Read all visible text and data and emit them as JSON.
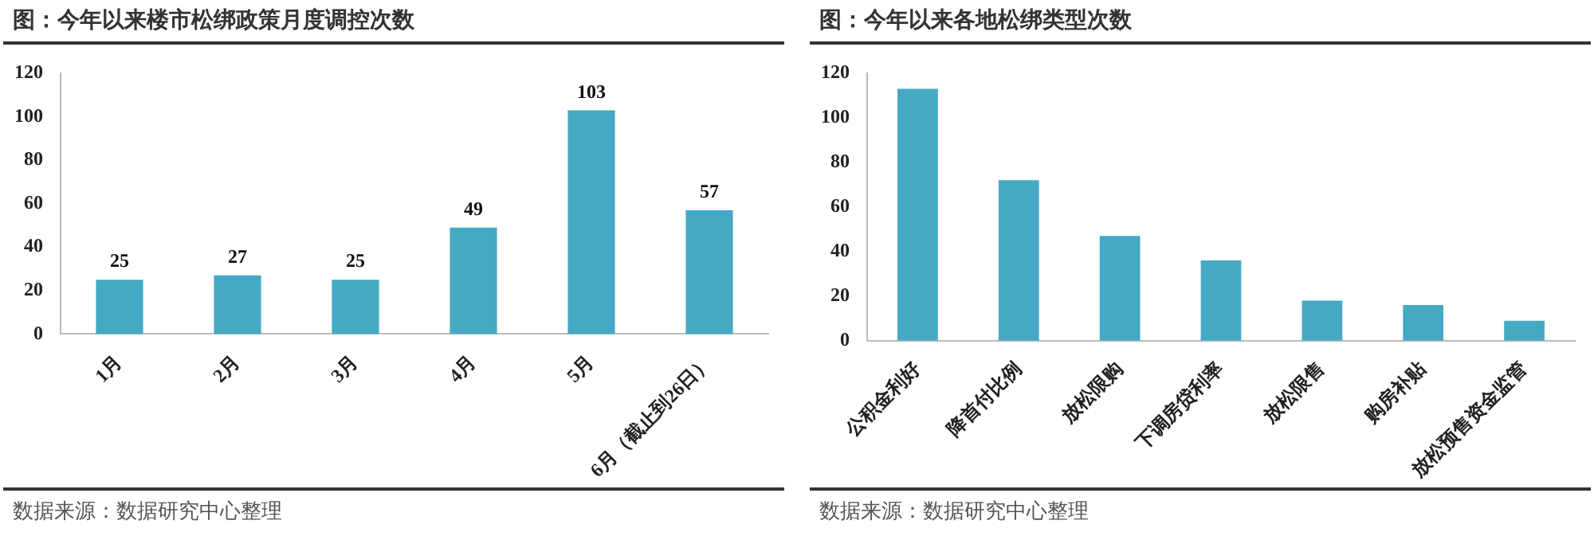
{
  "chart_data": [
    {
      "type": "bar",
      "title": "图：今年以来楼市松绑政策月度调控次数",
      "categories": [
        "1月",
        "2月",
        "3月",
        "4月",
        "5月",
        "6月（截止到26日）"
      ],
      "values": [
        25,
        27,
        25,
        49,
        103,
        57
      ],
      "color": "#45a9c4",
      "ylim": [
        0,
        120
      ],
      "yticks": [
        0,
        20,
        40,
        60,
        80,
        100,
        120
      ],
      "grid": false,
      "legend": false,
      "data_labels": true,
      "annotations": [
        "数据来源：数据研究中心整理"
      ]
    },
    {
      "type": "bar",
      "title": "图：今年以来各地松绑类型次数",
      "categories": [
        "公积金利好",
        "降首付比例",
        "放松限购",
        "下调房贷利率",
        "放松限售",
        "购房补贴",
        "放松预售资金监管"
      ],
      "values": [
        113,
        72,
        47,
        36,
        18,
        16,
        9
      ],
      "color": "#45a9c4",
      "ylim": [
        0,
        120
      ],
      "yticks": [
        0,
        20,
        40,
        60,
        80,
        100,
        120
      ],
      "grid": false,
      "legend": false,
      "annotations": [
        "数据来源：数据研究中心整理"
      ]
    }
  ]
}
